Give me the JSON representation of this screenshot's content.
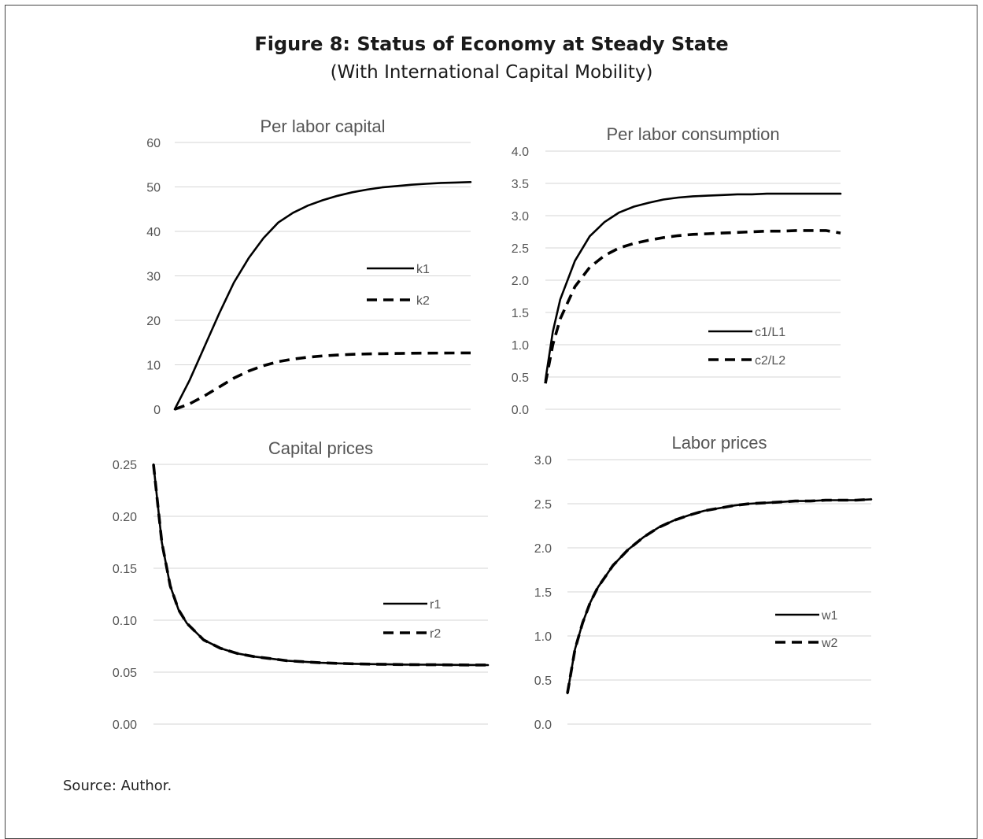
{
  "figure": {
    "title": "Figure 8: Status of Economy at Steady State",
    "subtitle": "(With International Capital Mobility)",
    "source": "Source: Author."
  },
  "chart_data": [
    {
      "id": "capital",
      "type": "line",
      "title": "Per labor capital",
      "xlabel": "",
      "ylabel": "",
      "ylim": [
        0,
        60
      ],
      "yticks": [
        "0",
        "10",
        "20",
        "30",
        "40",
        "50",
        "60"
      ],
      "ytick_values": [
        0,
        10,
        20,
        30,
        40,
        50,
        60
      ],
      "grid": true,
      "legend": "center-right",
      "x": [
        0,
        1,
        2,
        3,
        4,
        5,
        6,
        7,
        8,
        9,
        10,
        11,
        12,
        13,
        14,
        15,
        16,
        17,
        18,
        19,
        20
      ],
      "series": [
        {
          "name": "k1",
          "style": "solid",
          "values": [
            0,
            6.5,
            14,
            21.5,
            28.5,
            34,
            38.5,
            42,
            44.2,
            45.8,
            47,
            48,
            48.8,
            49.4,
            49.9,
            50.2,
            50.5,
            50.7,
            50.9,
            51.0,
            51.1
          ]
        },
        {
          "name": "k2",
          "style": "dashed",
          "values": [
            0,
            1.2,
            3,
            5,
            7,
            8.6,
            9.8,
            10.7,
            11.3,
            11.7,
            12.0,
            12.2,
            12.35,
            12.45,
            12.5,
            12.55,
            12.6,
            12.62,
            12.64,
            12.66,
            12.68
          ]
        }
      ]
    },
    {
      "id": "consumption",
      "type": "line",
      "title": "Per labor consumption",
      "xlabel": "",
      "ylabel": "",
      "ylim": [
        0,
        4
      ],
      "yticks": [
        "0.0",
        "0.5",
        "1.0",
        "1.5",
        "2.0",
        "2.5",
        "3.0",
        "3.5",
        "4.0"
      ],
      "ytick_values": [
        0,
        0.5,
        1,
        1.5,
        2,
        2.5,
        3,
        3.5,
        4
      ],
      "grid": true,
      "legend": "bottom-right",
      "x": [
        0,
        0.5,
        1,
        2,
        3,
        4,
        5,
        6,
        7,
        8,
        9,
        10,
        11,
        12,
        13,
        14,
        15,
        16,
        17,
        18,
        19,
        20
      ],
      "series": [
        {
          "name": "c1/L1",
          "style": "solid",
          "values": [
            0.45,
            1.2,
            1.7,
            2.3,
            2.68,
            2.9,
            3.05,
            3.14,
            3.2,
            3.25,
            3.28,
            3.3,
            3.31,
            3.32,
            3.33,
            3.33,
            3.34,
            3.34,
            3.34,
            3.34,
            3.34,
            3.34
          ]
        },
        {
          "name": "c2/L2",
          "style": "dashed",
          "values": [
            0.4,
            1.0,
            1.4,
            1.9,
            2.2,
            2.38,
            2.5,
            2.57,
            2.62,
            2.66,
            2.69,
            2.71,
            2.72,
            2.73,
            2.74,
            2.75,
            2.76,
            2.76,
            2.77,
            2.77,
            2.77,
            2.73
          ]
        }
      ]
    },
    {
      "id": "capital_prices",
      "type": "line",
      "title": "Capital prices",
      "xlabel": "",
      "ylabel": "",
      "ylim": [
        0,
        0.25
      ],
      "yticks": [
        "0.00",
        "0.05",
        "0.10",
        "0.15",
        "0.20",
        "0.25"
      ],
      "ytick_values": [
        0,
        0.05,
        0.1,
        0.15,
        0.2,
        0.25
      ],
      "grid": true,
      "legend": "center-right",
      "x": [
        0,
        0.5,
        1,
        1.5,
        2,
        3,
        4,
        5,
        6,
        7,
        8,
        9,
        10,
        11,
        12,
        13,
        14,
        15,
        16,
        17,
        18,
        19,
        20
      ],
      "series": [
        {
          "name": "r1",
          "style": "solid",
          "values": [
            0.25,
            0.175,
            0.133,
            0.11,
            0.097,
            0.081,
            0.073,
            0.068,
            0.065,
            0.063,
            0.061,
            0.06,
            0.059,
            0.0585,
            0.058,
            0.0577,
            0.0575,
            0.0573,
            0.0572,
            0.0571,
            0.057,
            0.0569,
            0.0568
          ]
        },
        {
          "name": "r2",
          "style": "dashed",
          "values": [
            0.25,
            0.175,
            0.133,
            0.11,
            0.097,
            0.081,
            0.073,
            0.068,
            0.065,
            0.063,
            0.061,
            0.06,
            0.059,
            0.0585,
            0.058,
            0.0577,
            0.0575,
            0.0573,
            0.0572,
            0.0571,
            0.057,
            0.0569,
            0.0568
          ]
        }
      ]
    },
    {
      "id": "labor_prices",
      "type": "line",
      "title": "Labor prices",
      "xlabel": "",
      "ylabel": "",
      "ylim": [
        0,
        3
      ],
      "yticks": [
        "0.0",
        "0.5",
        "1.0",
        "1.5",
        "2.0",
        "2.5",
        "3.0"
      ],
      "ytick_values": [
        0,
        0.5,
        1,
        1.5,
        2,
        2.5,
        3
      ],
      "grid": true,
      "legend": "center-right",
      "x": [
        0,
        0.5,
        1,
        1.5,
        2,
        3,
        4,
        5,
        6,
        7,
        8,
        9,
        10,
        11,
        12,
        13,
        14,
        15,
        16,
        17,
        18,
        19,
        20
      ],
      "series": [
        {
          "name": "w1",
          "style": "solid",
          "values": [
            0.35,
            0.85,
            1.15,
            1.38,
            1.55,
            1.8,
            1.98,
            2.12,
            2.23,
            2.31,
            2.37,
            2.42,
            2.45,
            2.48,
            2.5,
            2.51,
            2.52,
            2.53,
            2.53,
            2.54,
            2.54,
            2.54,
            2.55
          ]
        },
        {
          "name": "w2",
          "style": "dashed",
          "values": [
            0.35,
            0.85,
            1.15,
            1.38,
            1.55,
            1.8,
            1.98,
            2.12,
            2.23,
            2.31,
            2.37,
            2.42,
            2.45,
            2.48,
            2.5,
            2.51,
            2.52,
            2.53,
            2.53,
            2.54,
            2.54,
            2.54,
            2.55
          ]
        }
      ]
    }
  ]
}
